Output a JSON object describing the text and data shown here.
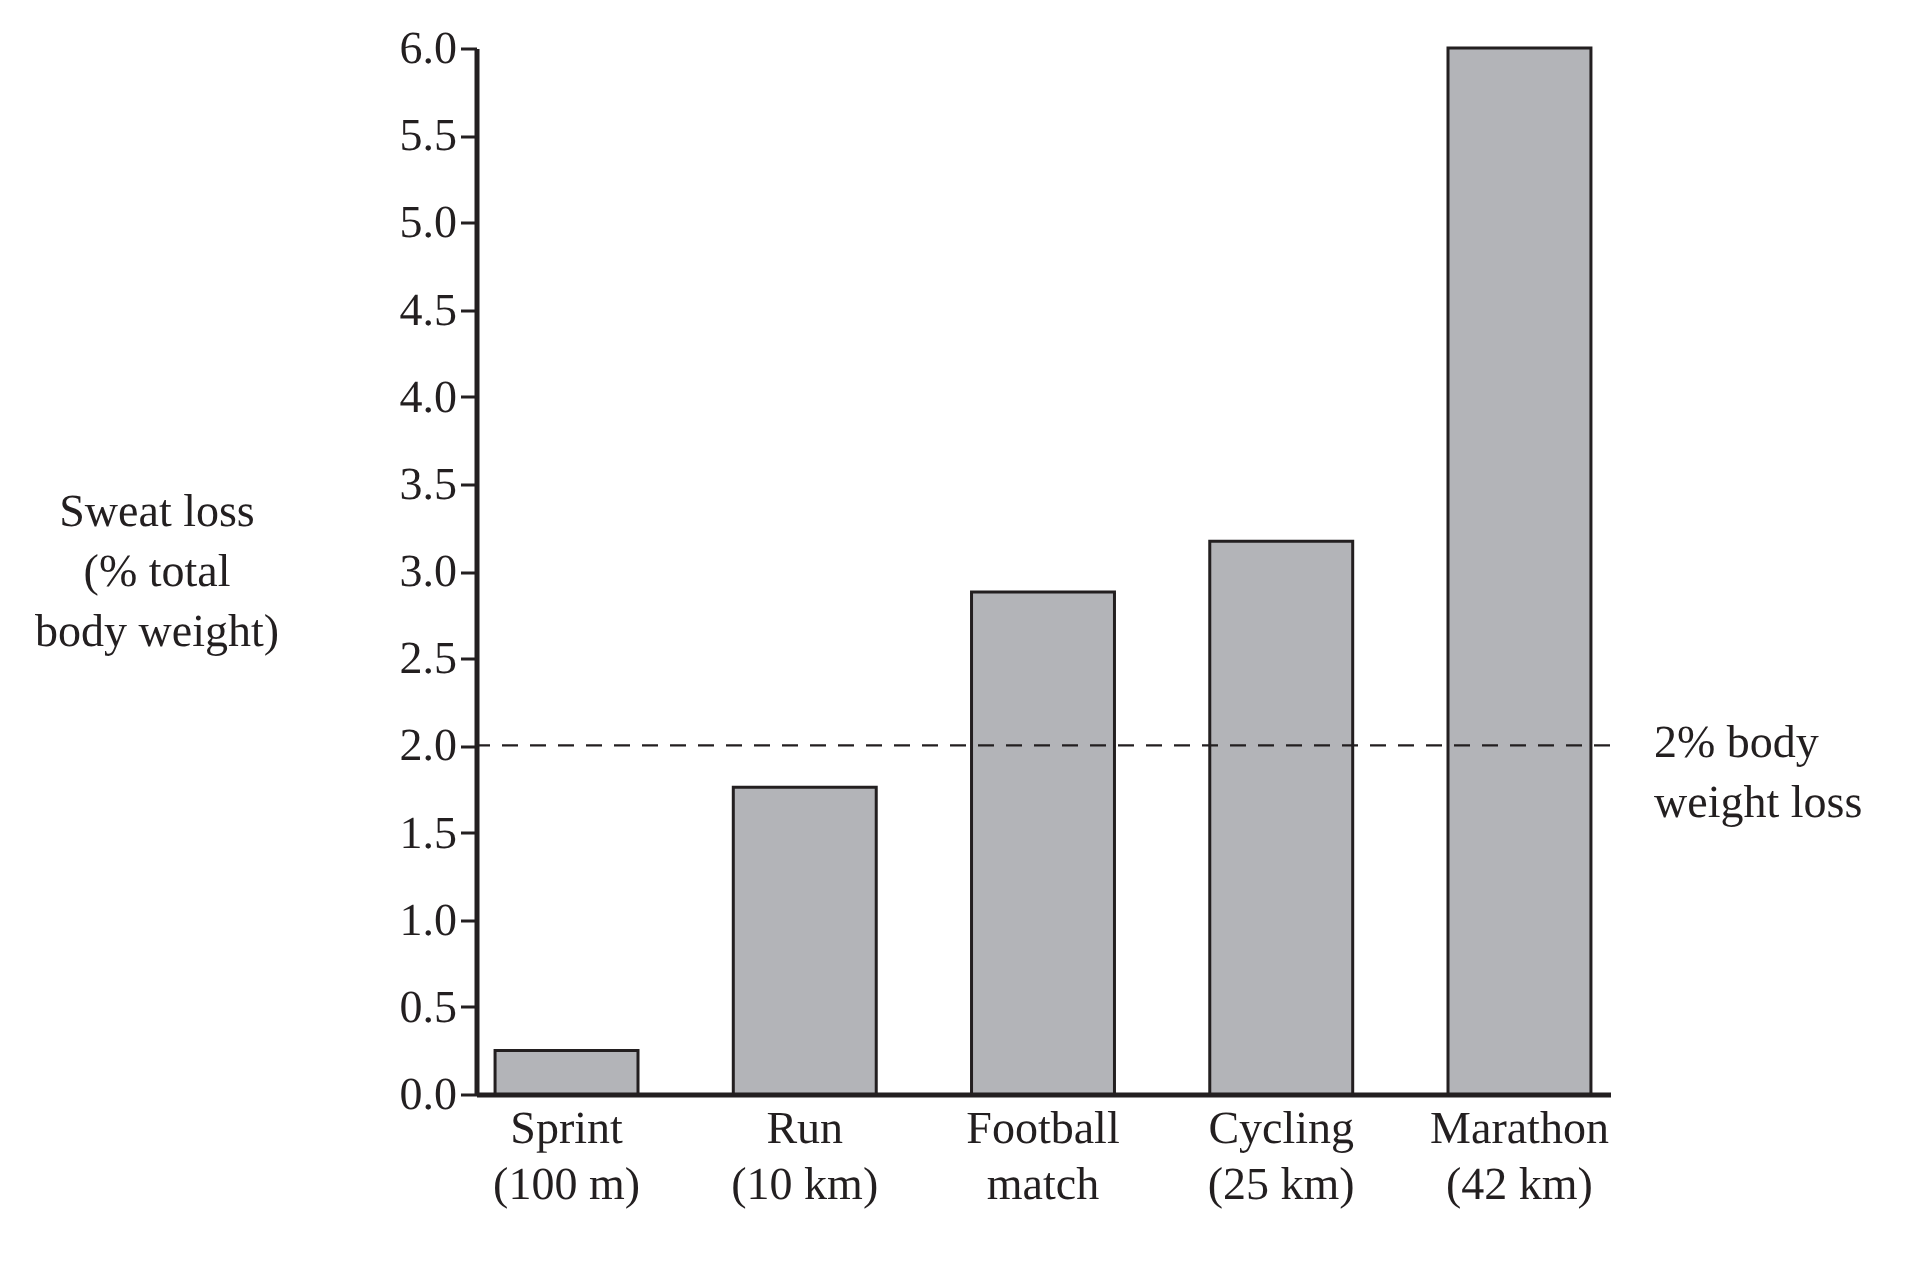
{
  "chart_data": {
    "type": "bar",
    "ylabel": "Sweat loss\n(% total\nbody weight)",
    "categories": [
      "Sprint\n(100 m)",
      "Run\n(10 km)",
      "Football\nmatch",
      "Cycling\n(25 km)",
      "Marathon\n(42 km)"
    ],
    "values": [
      0.25,
      1.76,
      2.88,
      3.17,
      6.0
    ],
    "color": "#b3b4b8",
    "ylim": [
      0,
      6
    ],
    "yticks": [
      {
        "value": 0,
        "label": "0.0"
      },
      {
        "value": 0.5,
        "label": "0.5"
      },
      {
        "value": 1,
        "label": "1.0"
      },
      {
        "value": 1.5,
        "label": "1.5"
      },
      {
        "value": 2,
        "label": "2.0"
      },
      {
        "value": 2.5,
        "label": "2.5"
      },
      {
        "value": 3,
        "label": "3.0"
      },
      {
        "value": 3.5,
        "label": "3.5"
      },
      {
        "value": 4,
        "label": "4.0"
      },
      {
        "value": 4.5,
        "label": "4.5"
      },
      {
        "value": 5,
        "label": "5.0"
      },
      {
        "value": 5.5,
        "label": "5.5"
      },
      {
        "value": 6,
        "label": "6.0"
      }
    ],
    "ref_lines": [
      {
        "axis": "y",
        "value": 2,
        "label": "2% body\nweight loss",
        "line_style": "dashed"
      }
    ]
  }
}
